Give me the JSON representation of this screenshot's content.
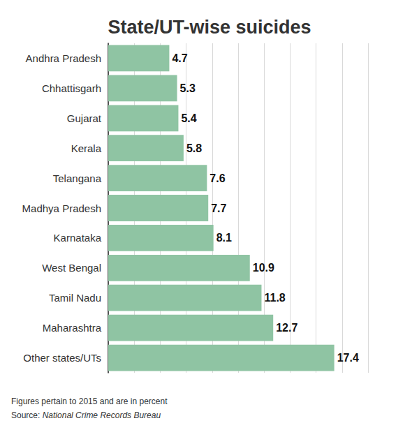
{
  "chart_data": {
    "type": "bar",
    "title": "State/UT-wise suicides",
    "categories": [
      "Andhra Pradesh",
      "Chhattisgarh",
      "Gujarat",
      "Kerala",
      "Telangana",
      "Madhya Pradesh",
      "Karnataka",
      "West Bengal",
      "Tamil Nadu",
      "Maharashtra",
      "Other states/UTs"
    ],
    "values": [
      4.7,
      5.3,
      5.4,
      5.8,
      7.6,
      7.7,
      8.1,
      10.9,
      11.8,
      12.7,
      17.4
    ],
    "color": "#8fc4a3",
    "orientation": "horizontal",
    "xlim": [
      0,
      20
    ],
    "xticks": [
      0,
      2,
      4,
      6,
      8,
      10,
      12,
      14,
      16,
      18,
      20
    ],
    "grid": true,
    "data_labels": true,
    "tick_labels": false,
    "notes": [
      "Figures pertain to 2015 and are in percent",
      "Source: National Crime Records Bureau"
    ]
  }
}
